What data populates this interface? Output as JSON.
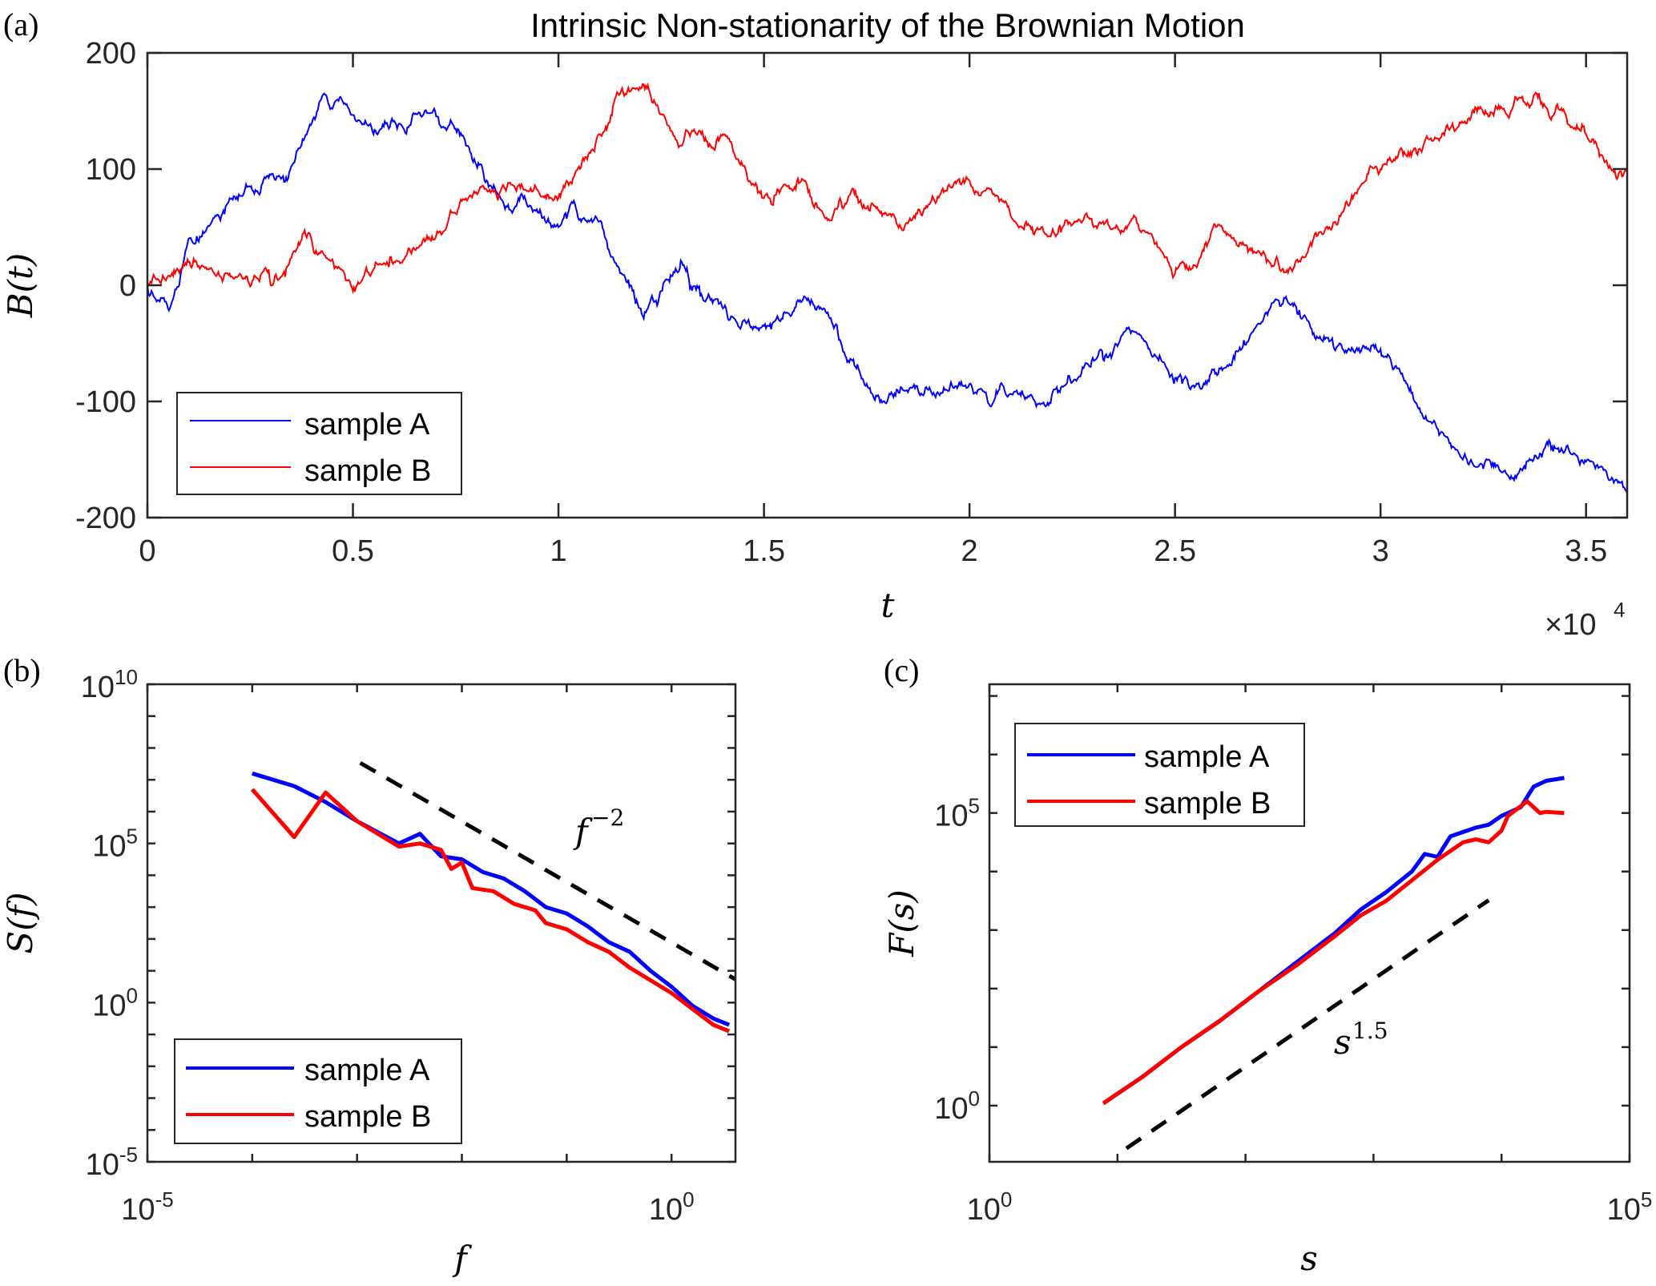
{
  "figure_title": "Intrinsic Non-stationarity of the Brownian Motion",
  "colors": {
    "sample_A": "#0000ff",
    "sample_B": "#ff0000",
    "reference": "#000000",
    "axis": "#262626"
  },
  "chart_data": [
    {
      "panel": "(a)",
      "type": "line",
      "title": "Intrinsic Non-stationarity of the Brownian Motion",
      "xlabel": "t",
      "ylabel": "B(t)",
      "x_multiplier_label": "×10",
      "x_multiplier_exp": "4",
      "xlim": [
        0,
        3.6
      ],
      "ylim": [
        -200,
        200
      ],
      "xticks": [
        0,
        0.5,
        1,
        1.5,
        2,
        2.5,
        3,
        3.5
      ],
      "xtick_labels": [
        "0",
        "0.5",
        "1",
        "1.5",
        "2",
        "2.5",
        "3",
        "3.5"
      ],
      "yticks": [
        200,
        100,
        0,
        -100,
        -200
      ],
      "ytick_labels": [
        "200",
        "100",
        "0",
        "-100",
        "-200"
      ],
      "legend": {
        "placement": "bottom-left",
        "entries": [
          "sample A",
          "sample B"
        ]
      },
      "series": [
        {
          "name": "sample A",
          "color": "#0000ff",
          "x": [
            0,
            0.05,
            0.1,
            0.2,
            0.3,
            0.43,
            0.55,
            0.7,
            0.85,
            1.0,
            1.1,
            1.2,
            1.3,
            1.4,
            1.5,
            1.6,
            1.8,
            1.9,
            2.0,
            2.2,
            2.4,
            2.5,
            2.77,
            2.9,
            3.0,
            3.1,
            3.2,
            3.3,
            3.4,
            3.6
          ],
          "y": [
            0,
            -20,
            40,
            75,
            95,
            165,
            130,
            150,
            80,
            50,
            55,
            -20,
            20,
            -20,
            -35,
            -10,
            -100,
            -90,
            -85,
            -95,
            -40,
            -80,
            -10,
            -50,
            -55,
            -110,
            -150,
            -160,
            -140,
            -175
          ]
        },
        {
          "name": "sample B",
          "color": "#ff0000",
          "x": [
            0,
            0.1,
            0.2,
            0.3,
            0.38,
            0.5,
            0.6,
            0.7,
            0.8,
            0.9,
            1.0,
            1.1,
            1.15,
            1.3,
            1.4,
            1.5,
            1.6,
            1.7,
            1.8,
            2.0,
            2.1,
            2.2,
            2.4,
            2.5,
            2.6,
            2.8,
            3.0,
            3.2,
            3.38,
            3.5,
            3.6
          ],
          "y": [
            0,
            20,
            10,
            0,
            45,
            -5,
            20,
            40,
            80,
            85,
            75,
            130,
            165,
            120,
            130,
            75,
            90,
            70,
            60,
            90,
            60,
            45,
            60,
            10,
            50,
            20,
            100,
            140,
            165,
            130,
            100
          ]
        }
      ]
    },
    {
      "panel": "(b)",
      "type": "line",
      "xscale": "log",
      "yscale": "log",
      "xlabel": "f",
      "ylabel": "S(f)",
      "xlim_log10": [
        -5,
        0.61
      ],
      "ylim_log10": [
        -5,
        10
      ],
      "xtick_labels": [
        {
          "base": "10",
          "exp": "-5"
        },
        {
          "base": "10",
          "exp": "0"
        }
      ],
      "xticks_log10": [
        -5,
        0
      ],
      "ytick_labels": [
        {
          "base": "10",
          "exp": "10"
        },
        {
          "base": "10",
          "exp": "5"
        },
        {
          "base": "10",
          "exp": "0"
        },
        {
          "base": "10",
          "exp": "-5"
        }
      ],
      "yticks_log10": [
        10,
        5,
        0,
        -5
      ],
      "legend": {
        "placement": "bottom-left",
        "entries": [
          "sample A",
          "sample B"
        ]
      },
      "annotation": {
        "text": "f",
        "exp": "−2"
      },
      "reference_line": {
        "style": "dashed",
        "label": "f^-2",
        "x_log10": [
          -2.97,
          0.61
        ],
        "y_log10": [
          7.53,
          0.73
        ]
      },
      "series": [
        {
          "name": "sample A",
          "color": "#0000ff",
          "x_log10": [
            -4.0,
            -3.6,
            -3.3,
            -3.0,
            -2.6,
            -2.4,
            -2.2,
            -2.0,
            -1.8,
            -1.6,
            -1.4,
            -1.2,
            -1.0,
            -0.8,
            -0.6,
            -0.4,
            -0.2,
            0.0,
            0.2,
            0.4,
            0.55
          ],
          "y_log10": [
            7.2,
            6.8,
            6.3,
            5.7,
            5.0,
            5.3,
            4.6,
            4.5,
            4.1,
            3.9,
            3.5,
            3.0,
            2.8,
            2.4,
            1.9,
            1.6,
            1.0,
            0.5,
            -0.1,
            -0.5,
            -0.7
          ]
        },
        {
          "name": "sample B",
          "color": "#ff0000",
          "x_log10": [
            -4.0,
            -3.6,
            -3.3,
            -3.0,
            -2.6,
            -2.4,
            -2.2,
            -2.1,
            -2.0,
            -1.9,
            -1.7,
            -1.5,
            -1.3,
            -1.2,
            -1.0,
            -0.8,
            -0.6,
            -0.4,
            -0.2,
            0.0,
            0.2,
            0.4,
            0.55
          ],
          "y_log10": [
            6.7,
            5.2,
            6.6,
            5.7,
            4.9,
            5.0,
            4.8,
            4.2,
            4.4,
            3.6,
            3.5,
            3.1,
            2.9,
            2.5,
            2.3,
            1.9,
            1.6,
            1.1,
            0.7,
            0.3,
            -0.2,
            -0.7,
            -0.9
          ]
        }
      ]
    },
    {
      "panel": "(c)",
      "type": "line",
      "xscale": "log",
      "yscale": "log",
      "xlabel": "s",
      "ylabel": "F(s)",
      "xlim_log10": [
        0,
        5
      ],
      "ylim_log10": [
        -0.96,
        7.2
      ],
      "xtick_labels": [
        {
          "base": "10",
          "exp": "0"
        },
        {
          "base": "10",
          "exp": "5"
        }
      ],
      "xticks_log10": [
        0,
        5
      ],
      "ytick_labels": [
        {
          "base": "10",
          "exp": "5"
        },
        {
          "base": "10",
          "exp": "0"
        }
      ],
      "yticks_log10": [
        5,
        0
      ],
      "legend": {
        "placement": "top-left",
        "entries": [
          "sample A",
          "sample B"
        ]
      },
      "annotation": {
        "text": "s",
        "exp": "1.5"
      },
      "reference_line": {
        "style": "dashed",
        "label": "s^1.5",
        "x_log10": [
          1.07,
          3.9
        ],
        "y_log10": [
          -0.73,
          3.51
        ]
      },
      "series": [
        {
          "name": "sample A",
          "color": "#0000ff",
          "x_log10": [
            0.89,
            1.2,
            1.5,
            1.8,
            2.1,
            2.4,
            2.7,
            2.9,
            3.1,
            3.3,
            3.4,
            3.5,
            3.6,
            3.8,
            3.9,
            4.0,
            4.15,
            4.25,
            4.35,
            4.49
          ],
          "y_log10": [
            0.04,
            0.5,
            1.0,
            1.45,
            1.95,
            2.45,
            2.95,
            3.35,
            3.65,
            4.0,
            4.3,
            4.25,
            4.6,
            4.75,
            4.8,
            4.95,
            5.1,
            5.45,
            5.55,
            5.6
          ]
        },
        {
          "name": "sample B",
          "color": "#ff0000",
          "x_log10": [
            0.89,
            1.2,
            1.5,
            1.8,
            2.1,
            2.4,
            2.7,
            2.9,
            3.1,
            3.3,
            3.5,
            3.7,
            3.8,
            3.9,
            4.0,
            4.05,
            4.2,
            4.3,
            4.35,
            4.49
          ],
          "y_log10": [
            0.04,
            0.5,
            1.0,
            1.45,
            1.95,
            2.4,
            2.9,
            3.25,
            3.5,
            3.85,
            4.2,
            4.5,
            4.55,
            4.5,
            4.7,
            4.95,
            5.2,
            5.0,
            5.02,
            5.0
          ]
        }
      ]
    }
  ]
}
